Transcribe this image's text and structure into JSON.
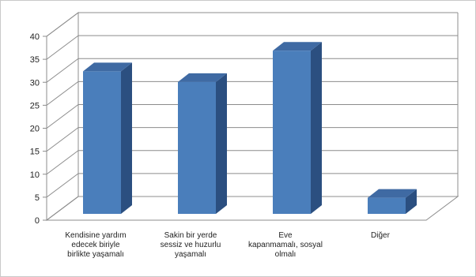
{
  "chart_data": {
    "type": "bar",
    "style": "3d-clustered-column",
    "categories": [
      [
        "Kendisine yardım",
        "edecek biriyle",
        "birlikte yaşamalı"
      ],
      [
        "Sakin bir yerde",
        "sessiz ve huzurlu",
        "yaşamalı"
      ],
      [
        "Eve",
        "kapanmamalı, sosyal",
        "olmalı"
      ],
      [
        "Diğer"
      ]
    ],
    "series": [
      {
        "values": [
          31,
          28.7,
          35.5,
          3.5
        ],
        "color": "#4a7ebb"
      }
    ],
    "title": "",
    "xlabel": "",
    "ylabel": "",
    "ylim": [
      0,
      40
    ],
    "yticks": [
      0,
      5,
      10,
      15,
      20,
      25,
      30,
      35,
      40
    ],
    "grid": true,
    "legend": "none"
  }
}
